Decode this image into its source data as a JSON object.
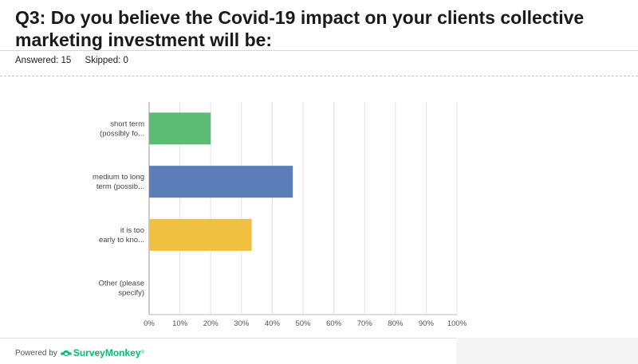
{
  "question": {
    "title": "Q3: Do you believe the Covid-19 impact on your clients collective marketing investment will be:"
  },
  "stats": {
    "answered": "Answered: 15",
    "skipped": "Skipped: 0"
  },
  "chart_data": {
    "type": "bar",
    "orientation": "horizontal",
    "categories": [
      [
        "short term",
        "(possibly fo..."
      ],
      [
        "medium to long",
        "term (possib..."
      ],
      [
        "it is too",
        "early to kno..."
      ],
      [
        "Other (please",
        "specify)"
      ]
    ],
    "values": [
      20,
      46.67,
      33.33,
      0
    ],
    "colors": [
      "#5cbc74",
      "#5b7db8",
      "#f0c040",
      "#cccccc"
    ],
    "xlim": [
      0,
      100
    ],
    "x_ticks": [
      "0%",
      "10%",
      "20%",
      "30%",
      "40%",
      "50%",
      "60%",
      "70%",
      "80%",
      "90%",
      "100%"
    ],
    "grid": true
  },
  "footer": {
    "powered_by": "Powered by",
    "brand": "SurveyMonkey",
    "brand_color": "#00bf6f"
  }
}
